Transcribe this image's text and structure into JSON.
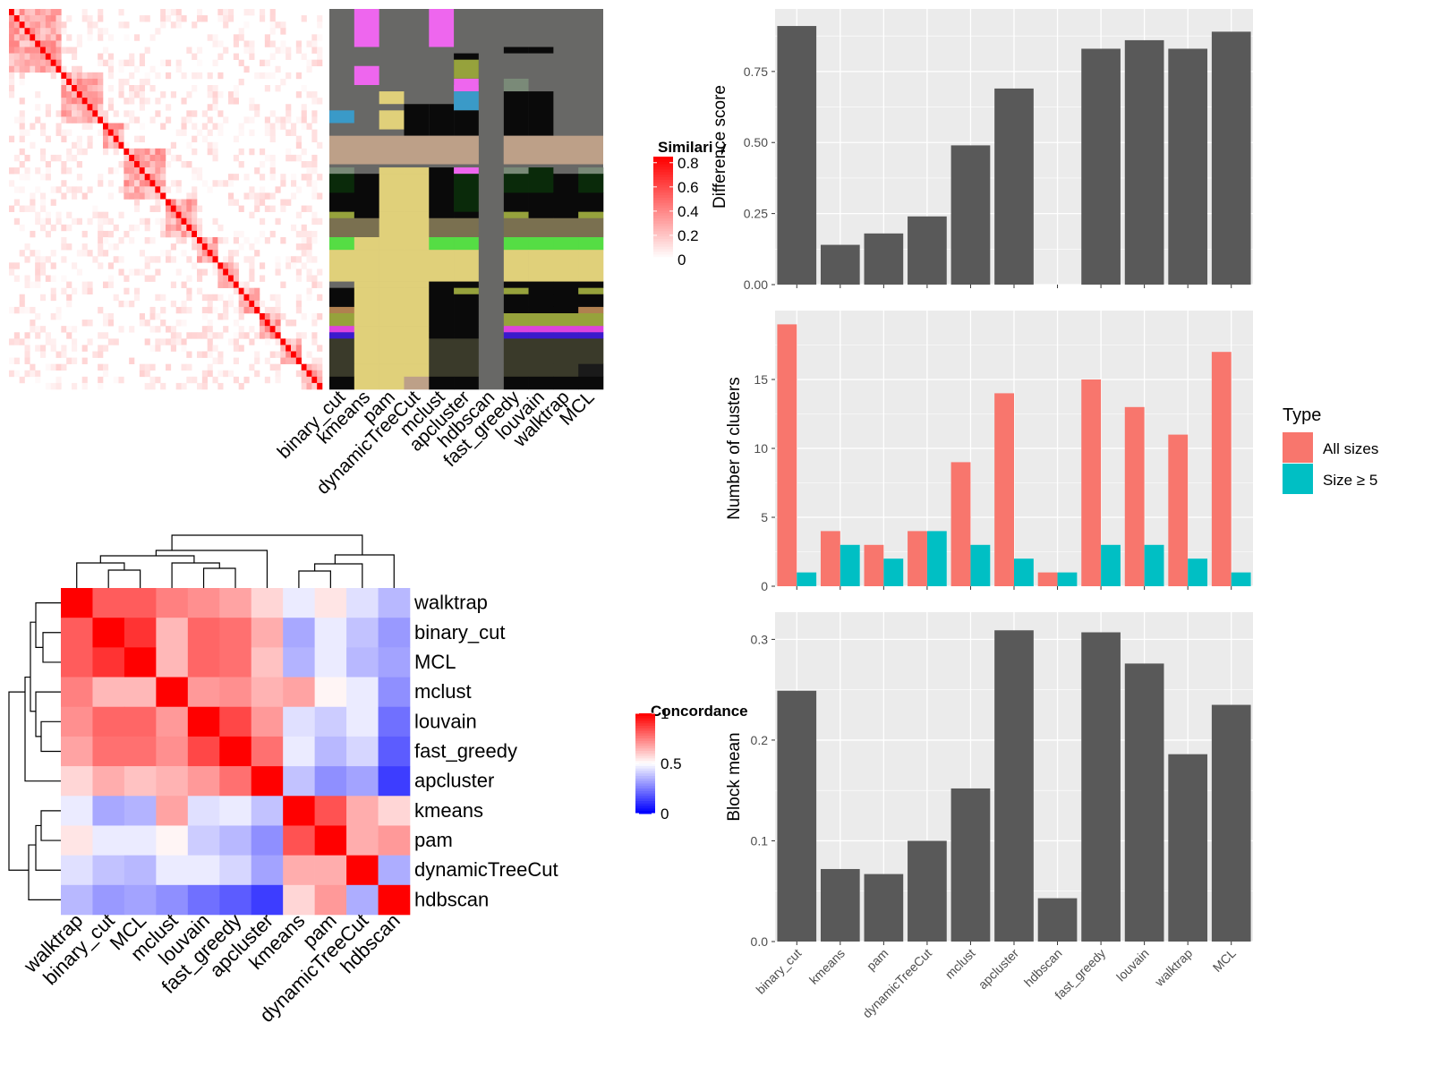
{
  "chart_data": [
    {
      "type": "heatmap",
      "id": "similarity_heatmap",
      "legend_title": "Similarity",
      "legend_ticks": [
        "0",
        "0.2",
        "0.4",
        "0.6",
        "0.8"
      ],
      "n_terms": 60
    },
    {
      "type": "heatmap",
      "id": "cluster_membership",
      "columns": [
        "binary_cut",
        "kmeans",
        "pam",
        "dynamicTreeCut",
        "mclust",
        "apcluster",
        "hdbscan",
        "fast_greedy",
        "louvain",
        "walktrap",
        "MCL"
      ]
    },
    {
      "type": "heatmap",
      "id": "concordance_heatmap",
      "legend_title": "Concordance",
      "legend_ticks": [
        "0",
        "0.5",
        "1"
      ],
      "rows": [
        "walktrap",
        "binary_cut",
        "MCL",
        "mclust",
        "louvain",
        "fast_greedy",
        "apcluster",
        "kmeans",
        "pam",
        "dynamicTreeCut",
        "hdbscan"
      ],
      "cols": [
        "walktrap",
        "binary_cut",
        "MCL",
        "mclust",
        "louvain",
        "fast_greedy",
        "apcluster",
        "kmeans",
        "pam",
        "dynamicTreeCut",
        "hdbscan"
      ],
      "values": [
        [
          1.0,
          0.82,
          0.82,
          0.75,
          0.72,
          0.68,
          0.58,
          0.46,
          0.55,
          0.44,
          0.36
        ],
        [
          0.82,
          1.0,
          0.9,
          0.64,
          0.8,
          0.78,
          0.66,
          0.33,
          0.46,
          0.38,
          0.3
        ],
        [
          0.82,
          0.9,
          1.0,
          0.64,
          0.8,
          0.78,
          0.62,
          0.35,
          0.46,
          0.36,
          0.32
        ],
        [
          0.75,
          0.64,
          0.64,
          1.0,
          0.7,
          0.72,
          0.65,
          0.68,
          0.52,
          0.46,
          0.28
        ],
        [
          0.72,
          0.8,
          0.8,
          0.7,
          1.0,
          0.86,
          0.7,
          0.44,
          0.4,
          0.46,
          0.22
        ],
        [
          0.68,
          0.78,
          0.78,
          0.72,
          0.86,
          1.0,
          0.78,
          0.46,
          0.36,
          0.42,
          0.18
        ],
        [
          0.58,
          0.66,
          0.62,
          0.65,
          0.7,
          0.78,
          1.0,
          0.38,
          0.28,
          0.32,
          0.12
        ],
        [
          0.46,
          0.33,
          0.35,
          0.68,
          0.44,
          0.46,
          0.38,
          1.0,
          0.84,
          0.66,
          0.58
        ],
        [
          0.55,
          0.46,
          0.46,
          0.52,
          0.4,
          0.36,
          0.28,
          0.84,
          1.0,
          0.66,
          0.7
        ],
        [
          0.44,
          0.38,
          0.36,
          0.46,
          0.46,
          0.42,
          0.32,
          0.66,
          0.66,
          1.0,
          0.34
        ],
        [
          0.36,
          0.3,
          0.32,
          0.28,
          0.22,
          0.18,
          0.12,
          0.58,
          0.7,
          0.34,
          1.0
        ]
      ]
    },
    {
      "type": "bar",
      "id": "difference_score",
      "categories": [
        "binary_cut",
        "kmeans",
        "pam",
        "dynamicTreeCut",
        "mclust",
        "apcluster",
        "hdbscan",
        "fast_greedy",
        "louvain",
        "walktrap",
        "MCL"
      ],
      "values": [
        0.91,
        0.14,
        0.18,
        0.24,
        0.49,
        0.69,
        0.0,
        0.83,
        0.86,
        0.83,
        0.89
      ],
      "ylabel": "Difference score",
      "ylim": [
        0,
        0.97
      ],
      "yticks": [
        "0.00",
        "0.25",
        "0.50",
        "0.75"
      ]
    },
    {
      "type": "bar",
      "id": "number_of_clusters",
      "categories": [
        "binary_cut",
        "kmeans",
        "pam",
        "dynamicTreeCut",
        "mclust",
        "apcluster",
        "hdbscan",
        "fast_greedy",
        "louvain",
        "walktrap",
        "MCL"
      ],
      "series": [
        {
          "name": "All sizes",
          "values": [
            19,
            4,
            3,
            4,
            9,
            14,
            1,
            15,
            13,
            11,
            17
          ],
          "color": "#f8766d"
        },
        {
          "name": "Size ≥ 5",
          "values": [
            1,
            3,
            2,
            4,
            3,
            2,
            1,
            3,
            3,
            2,
            1
          ],
          "color": "#00bfc4"
        }
      ],
      "ylabel": "Number of clusters",
      "ylim": [
        0,
        20
      ],
      "yticks": [
        "0",
        "5",
        "10",
        "15"
      ],
      "legend_title": "Type",
      "legend_position": "right"
    },
    {
      "type": "bar",
      "id": "block_mean",
      "categories": [
        "binary_cut",
        "kmeans",
        "pam",
        "dynamicTreeCut",
        "mclust",
        "apcluster",
        "hdbscan",
        "fast_greedy",
        "louvain",
        "walktrap",
        "MCL"
      ],
      "values": [
        0.249,
        0.072,
        0.067,
        0.1,
        0.152,
        0.309,
        0.043,
        0.307,
        0.276,
        0.186,
        0.235
      ],
      "ylabel": "Block mean",
      "ylim": [
        0,
        0.327
      ],
      "yticks": [
        "0.0",
        "0.1",
        "0.2",
        "0.3"
      ]
    }
  ],
  "colors": {
    "panel_bg": "#ebebeb",
    "grid": "#ffffff",
    "bar": "#595959",
    "membership_bg": "#686866"
  }
}
